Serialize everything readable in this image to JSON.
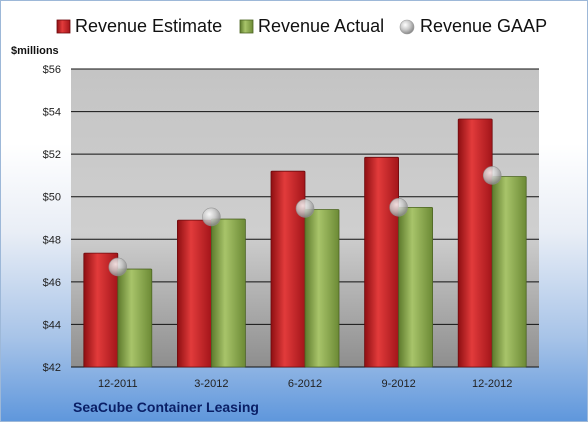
{
  "chart_data": {
    "type": "bar",
    "company": "SeaCube Container Leasing",
    "unit_label": "$millions",
    "categories": [
      "12-2011",
      "3-2012",
      "6-2012",
      "9-2012",
      "12-2012"
    ],
    "series": [
      {
        "name": "Revenue Estimate",
        "kind": "bar",
        "color": "#cc2222",
        "values": [
          47.35,
          48.9,
          51.2,
          51.85,
          53.65
        ]
      },
      {
        "name": "Revenue Actual",
        "kind": "bar",
        "color": "#8fae4f",
        "values": [
          46.6,
          48.95,
          49.4,
          49.5,
          50.95
        ]
      },
      {
        "name": "Revenue GAAP",
        "kind": "marker",
        "color": "#b8b8b8",
        "values": [
          46.7,
          49.05,
          49.45,
          49.5,
          51.0
        ]
      }
    ],
    "ylim": [
      42,
      56
    ],
    "yticks": [
      "$42",
      "$44",
      "$46",
      "$48",
      "$50",
      "$52",
      "$54",
      "$56"
    ],
    "grid": true,
    "legend_position": "top"
  }
}
